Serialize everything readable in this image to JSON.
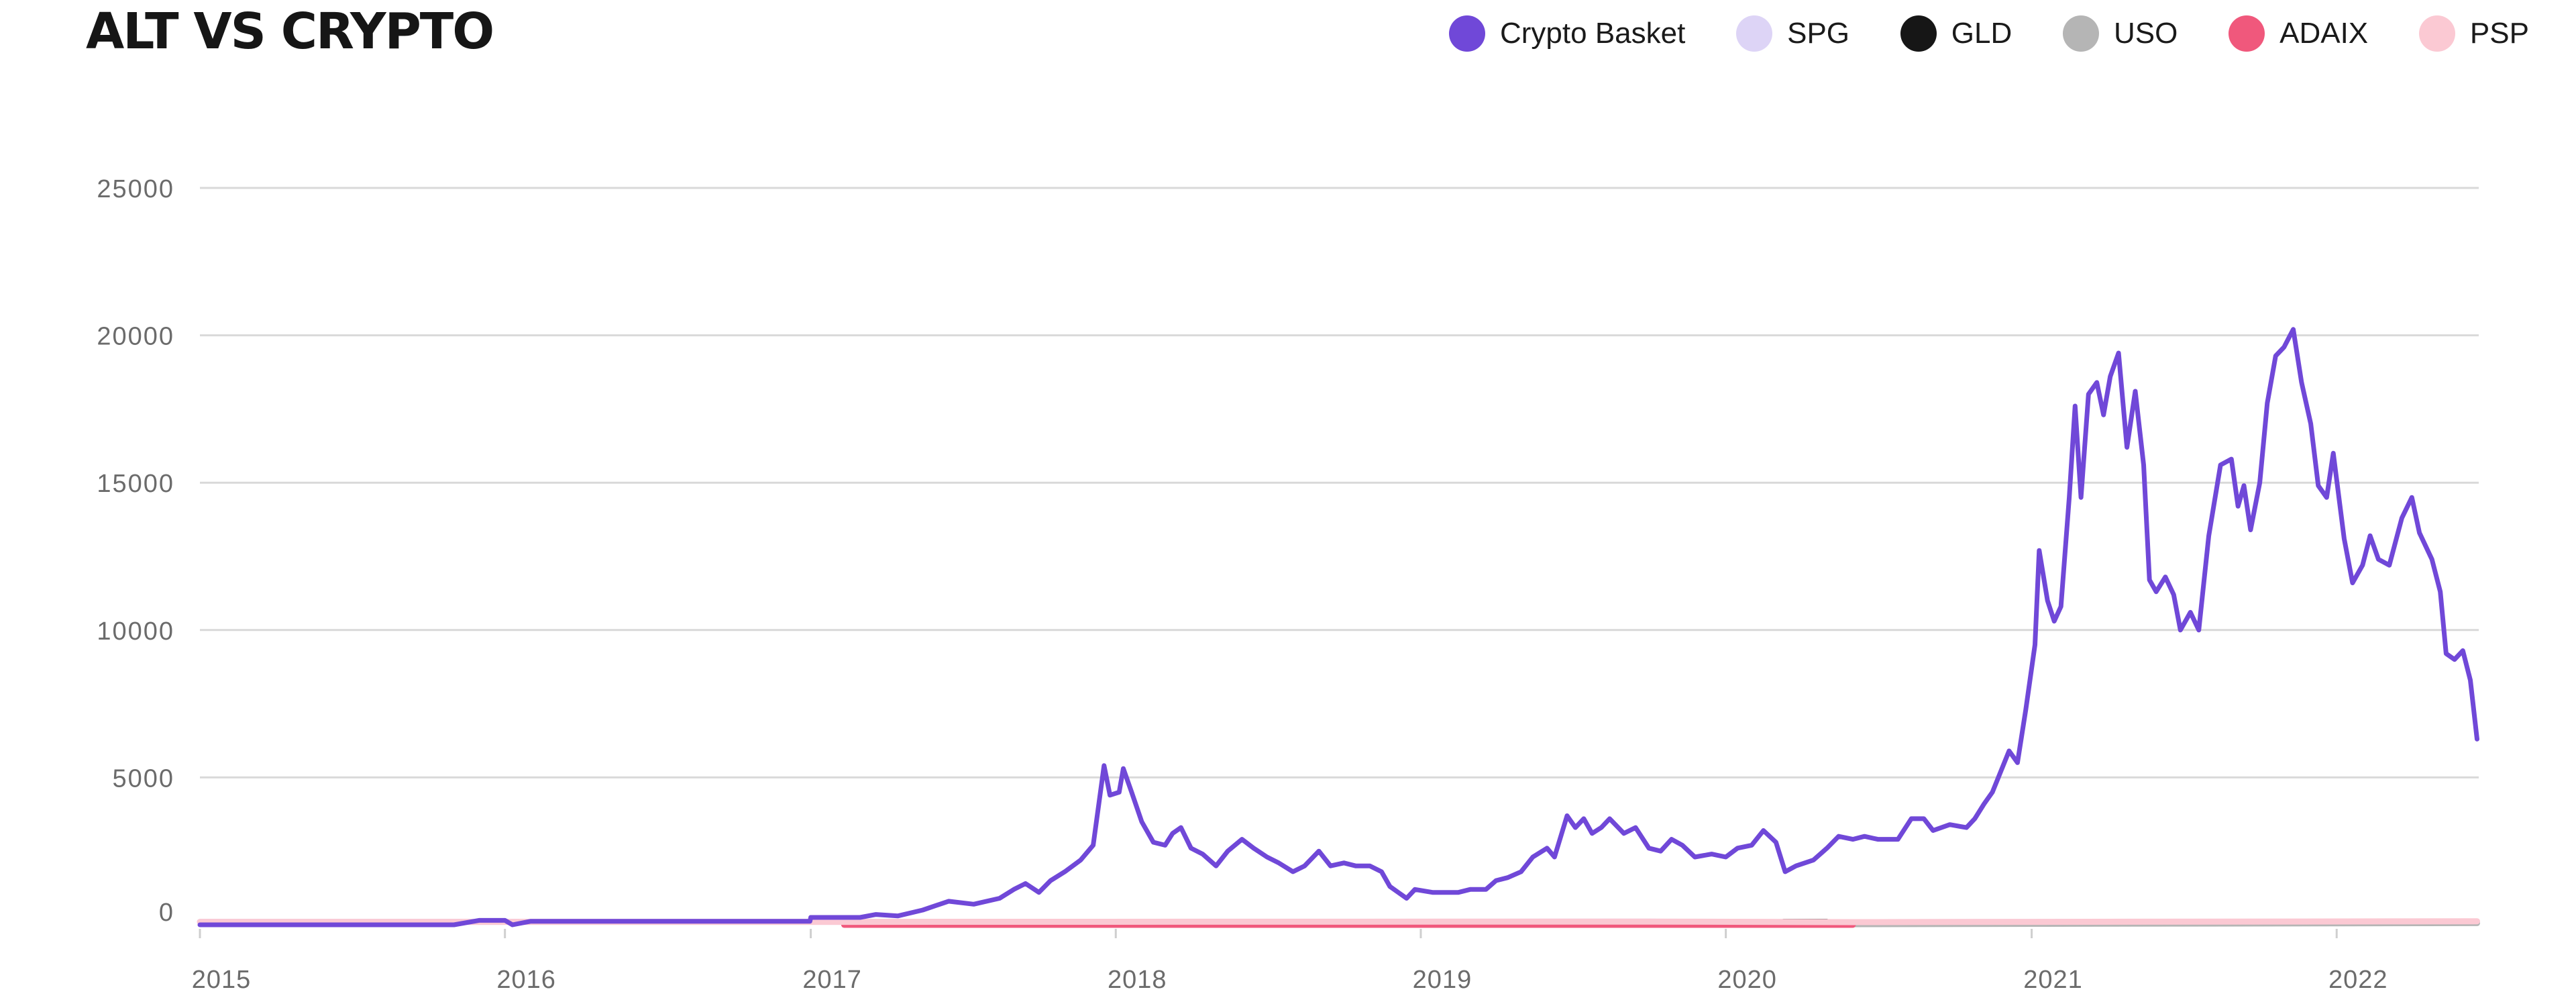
{
  "chart_data": {
    "type": "line",
    "title": "ALT VS CRYPTO",
    "xlabel": "",
    "ylabel": "",
    "x_range": [
      "2015-01-01",
      "2022-06-20"
    ],
    "ylim": [
      0,
      25000
    ],
    "yticks": [
      "0",
      "5000",
      "10000",
      "15000",
      "20000",
      "25000"
    ],
    "xticks": [
      "2015",
      "2016",
      "2017",
      "2018",
      "2019",
      "2020",
      "2021",
      "2022"
    ],
    "grid": true,
    "legend_position": "top-right",
    "series": [
      {
        "name": "Crypto Basket",
        "color": "#7048d8",
        "points": [
          [
            "2015-01-01",
            0
          ],
          [
            "2015-11-01",
            0
          ],
          [
            "2015-12-01",
            150
          ],
          [
            "2016-01-01",
            150
          ],
          [
            "2016-01-10",
            0
          ],
          [
            "2016-02-01",
            120
          ],
          [
            "2016-12-31",
            120
          ],
          [
            "2017-01-01",
            250
          ],
          [
            "2017-03-01",
            250
          ],
          [
            "2017-03-20",
            350
          ],
          [
            "2017-04-15",
            300
          ],
          [
            "2017-05-15",
            500
          ],
          [
            "2017-06-15",
            800
          ],
          [
            "2017-07-15",
            700
          ],
          [
            "2017-08-15",
            900
          ],
          [
            "2017-09-01",
            1200
          ],
          [
            "2017-09-15",
            1400
          ],
          [
            "2017-10-01",
            1100
          ],
          [
            "2017-10-15",
            1500
          ],
          [
            "2017-11-01",
            1800
          ],
          [
            "2017-11-20",
            2200
          ],
          [
            "2017-12-05",
            2700
          ],
          [
            "2017-12-18",
            5400
          ],
          [
            "2017-12-25",
            4400
          ],
          [
            "2018-01-05",
            4500
          ],
          [
            "2018-01-10",
            5300
          ],
          [
            "2018-01-20",
            4500
          ],
          [
            "2018-02-01",
            3500
          ],
          [
            "2018-02-15",
            2800
          ],
          [
            "2018-03-01",
            2700
          ],
          [
            "2018-03-10",
            3100
          ],
          [
            "2018-03-20",
            3300
          ],
          [
            "2018-04-01",
            2600
          ],
          [
            "2018-04-15",
            2400
          ],
          [
            "2018-05-01",
            2000
          ],
          [
            "2018-05-15",
            2500
          ],
          [
            "2018-06-01",
            2900
          ],
          [
            "2018-06-15",
            2600
          ],
          [
            "2018-07-01",
            2300
          ],
          [
            "2018-07-15",
            2100
          ],
          [
            "2018-08-01",
            1800
          ],
          [
            "2018-08-15",
            2000
          ],
          [
            "2018-09-01",
            2500
          ],
          [
            "2018-09-15",
            2000
          ],
          [
            "2018-10-01",
            2100
          ],
          [
            "2018-10-15",
            2000
          ],
          [
            "2018-11-01",
            2000
          ],
          [
            "2018-11-15",
            1800
          ],
          [
            "2018-11-25",
            1300
          ],
          [
            "2018-12-05",
            1100
          ],
          [
            "2018-12-15",
            900
          ],
          [
            "2018-12-25",
            1200
          ],
          [
            "2019-01-15",
            1100
          ],
          [
            "2019-02-15",
            1100
          ],
          [
            "2019-03-01",
            1200
          ],
          [
            "2019-03-20",
            1200
          ],
          [
            "2019-04-01",
            1500
          ],
          [
            "2019-04-15",
            1600
          ],
          [
            "2019-05-01",
            1800
          ],
          [
            "2019-05-15",
            2300
          ],
          [
            "2019-06-01",
            2600
          ],
          [
            "2019-06-10",
            2300
          ],
          [
            "2019-06-25",
            3700
          ],
          [
            "2019-07-05",
            3300
          ],
          [
            "2019-07-15",
            3600
          ],
          [
            "2019-07-25",
            3100
          ],
          [
            "2019-08-05",
            3300
          ],
          [
            "2019-08-15",
            3600
          ],
          [
            "2019-09-01",
            3100
          ],
          [
            "2019-09-15",
            3300
          ],
          [
            "2019-10-01",
            2600
          ],
          [
            "2019-10-15",
            2500
          ],
          [
            "2019-10-28",
            2900
          ],
          [
            "2019-11-10",
            2700
          ],
          [
            "2019-11-25",
            2300
          ],
          [
            "2019-12-15",
            2400
          ],
          [
            "2020-01-01",
            2300
          ],
          [
            "2020-01-15",
            2600
          ],
          [
            "2020-02-01",
            2700
          ],
          [
            "2020-02-15",
            3200
          ],
          [
            "2020-03-01",
            2800
          ],
          [
            "2020-03-12",
            1800
          ],
          [
            "2020-03-25",
            2000
          ],
          [
            "2020-04-15",
            2200
          ],
          [
            "2020-05-01",
            2600
          ],
          [
            "2020-05-15",
            3000
          ],
          [
            "2020-06-01",
            2900
          ],
          [
            "2020-06-15",
            3000
          ],
          [
            "2020-07-01",
            2900
          ],
          [
            "2020-07-25",
            2900
          ],
          [
            "2020-08-10",
            3600
          ],
          [
            "2020-08-25",
            3600
          ],
          [
            "2020-09-05",
            3200
          ],
          [
            "2020-09-25",
            3400
          ],
          [
            "2020-10-15",
            3300
          ],
          [
            "2020-10-25",
            3600
          ],
          [
            "2020-11-05",
            4100
          ],
          [
            "2020-11-15",
            4500
          ],
          [
            "2020-11-25",
            5200
          ],
          [
            "2020-12-05",
            5900
          ],
          [
            "2020-12-15",
            5500
          ],
          [
            "2020-12-25",
            7300
          ],
          [
            "2021-01-05",
            9500
          ],
          [
            "2021-01-10",
            12700
          ],
          [
            "2021-01-20",
            11000
          ],
          [
            "2021-01-28",
            10300
          ],
          [
            "2021-02-05",
            10800
          ],
          [
            "2021-02-15",
            14500
          ],
          [
            "2021-02-22",
            17600
          ],
          [
            "2021-03-01",
            14500
          ],
          [
            "2021-03-10",
            18000
          ],
          [
            "2021-03-20",
            18400
          ],
          [
            "2021-03-28",
            17300
          ],
          [
            "2021-04-05",
            18600
          ],
          [
            "2021-04-15",
            19400
          ],
          [
            "2021-04-25",
            16200
          ],
          [
            "2021-05-05",
            18100
          ],
          [
            "2021-05-15",
            15600
          ],
          [
            "2021-05-22",
            11700
          ],
          [
            "2021-05-30",
            11300
          ],
          [
            "2021-06-10",
            11800
          ],
          [
            "2021-06-20",
            11200
          ],
          [
            "2021-06-28",
            10000
          ],
          [
            "2021-07-10",
            10600
          ],
          [
            "2021-07-20",
            10000
          ],
          [
            "2021-08-01",
            13200
          ],
          [
            "2021-08-15",
            15600
          ],
          [
            "2021-08-28",
            15800
          ],
          [
            "2021-09-05",
            14200
          ],
          [
            "2021-09-12",
            14900
          ],
          [
            "2021-09-20",
            13400
          ],
          [
            "2021-10-01",
            15000
          ],
          [
            "2021-10-10",
            17700
          ],
          [
            "2021-10-20",
            19300
          ],
          [
            "2021-10-30",
            19600
          ],
          [
            "2021-11-10",
            20200
          ],
          [
            "2021-11-20",
            18400
          ],
          [
            "2021-12-01",
            17000
          ],
          [
            "2021-12-10",
            14900
          ],
          [
            "2021-12-20",
            14500
          ],
          [
            "2021-12-28",
            16000
          ],
          [
            "2022-01-10",
            13100
          ],
          [
            "2022-01-20",
            11600
          ],
          [
            "2022-02-01",
            12200
          ],
          [
            "2022-02-10",
            13200
          ],
          [
            "2022-02-20",
            12400
          ],
          [
            "2022-03-05",
            12200
          ],
          [
            "2022-03-20",
            13800
          ],
          [
            "2022-04-01",
            14500
          ],
          [
            "2022-04-10",
            13300
          ],
          [
            "2022-04-25",
            12400
          ],
          [
            "2022-05-05",
            11300
          ],
          [
            "2022-05-12",
            9200
          ],
          [
            "2022-05-22",
            9000
          ],
          [
            "2022-06-01",
            9300
          ],
          [
            "2022-06-10",
            8300
          ],
          [
            "2022-06-18",
            6300
          ]
        ]
      },
      {
        "name": "SPG",
        "color": "#ddd4f6",
        "points": [
          [
            "2015-01-01",
            100
          ],
          [
            "2018-12-15",
            100
          ],
          [
            "2019-10-01",
            110
          ],
          [
            "2020-03-15",
            60
          ],
          [
            "2020-06-01",
            90
          ],
          [
            "2022-06-18",
            100
          ]
        ]
      },
      {
        "name": "GLD",
        "color": "#161616",
        "points": [
          [
            "2020-03-10",
            100
          ],
          [
            "2020-05-01",
            100
          ]
        ]
      },
      {
        "name": "USO",
        "color": "#b5b5b5",
        "points": [
          [
            "2019-10-01",
            100
          ],
          [
            "2020-03-15",
            80
          ],
          [
            "2020-05-01",
            20
          ],
          [
            "2022-06-18",
            60
          ]
        ]
      },
      {
        "name": "ADAIX",
        "color": "#f0587c",
        "points": [
          [
            "2017-02-10",
            0
          ],
          [
            "2020-06-01",
            0
          ]
        ]
      },
      {
        "name": "PSP",
        "color": "#fbc9d3",
        "points": [
          [
            "2015-01-01",
            100
          ],
          [
            "2017-02-10",
            100
          ],
          [
            "2019-10-01",
            110
          ],
          [
            "2020-06-01",
            90
          ],
          [
            "2022-06-18",
            120
          ]
        ]
      }
    ]
  }
}
